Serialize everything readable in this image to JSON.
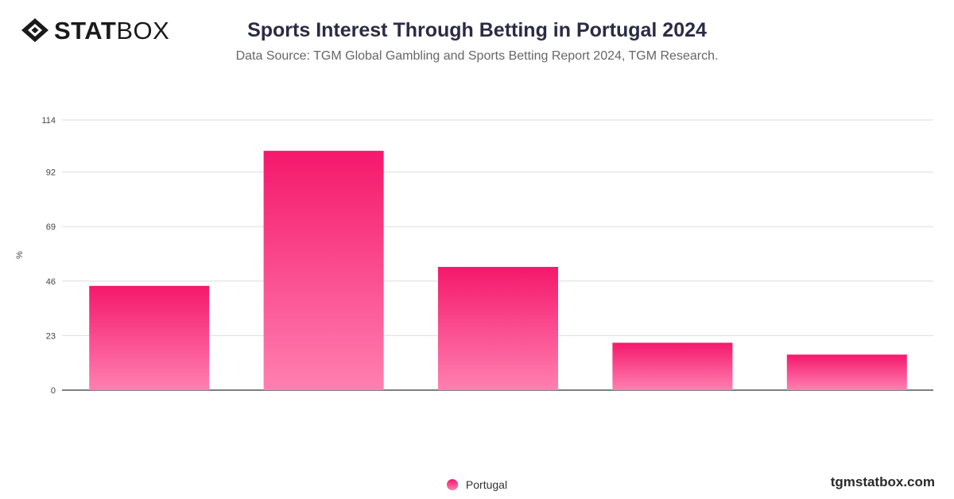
{
  "brand": {
    "logo_bold": "STAT",
    "logo_light": "BOX",
    "website": "tgmstatbox.com"
  },
  "header": {
    "title": "Sports Interest Through Betting in Portugal 2024",
    "subtitle": "Data Source: TGM Global Gambling and Sports Betting Report 2024, TGM Research."
  },
  "colors": {
    "bar_top": "#f5186c",
    "bar_bottom": "#ff80b1",
    "grid": "#dddddd",
    "axis": "#333333"
  },
  "chart_data": {
    "type": "bar",
    "title": "Sports Interest Through Betting in Portugal 2024",
    "xlabel": "",
    "ylabel": "%",
    "ylim": [
      0,
      114
    ],
    "yticks": [
      0,
      23,
      46,
      69,
      92,
      114
    ],
    "categories": [
      "",
      "",
      "",
      "",
      ""
    ],
    "series": [
      {
        "name": "Portugal",
        "values": [
          44,
          101,
          52,
          20,
          15
        ]
      }
    ],
    "grid": true,
    "legend": "bottom-center"
  }
}
